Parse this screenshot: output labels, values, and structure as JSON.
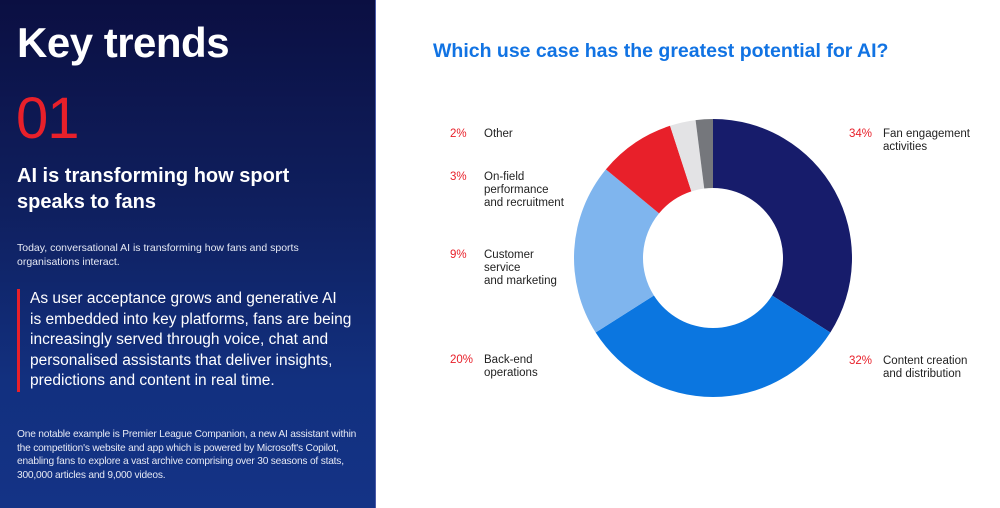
{
  "left_panel": {
    "title": "Key trends",
    "number": "01",
    "subtitle": "AI is transforming how sport speaks to fans",
    "intro": "Today, conversational AI is transforming how fans and sports organisations interact.",
    "quote": "As user acceptance grows and generative AI is embedded into key platforms, fans are being increasingly served through voice, chat and personalised assistants that deliver insights, predictions and content in real time.",
    "footnote": "One notable example is Premier League Companion, a new AI assistant within the competition's website and app which is powered by Microsoft's Copilot, enabling fans to explore a vast archive comprising over 30 seasons of stats, 300,000 articles and 9,000 videos."
  },
  "colors": {
    "accent_red": "#e8202a",
    "title_blue": "#1173e3",
    "panel_navy": "#0f1f5e"
  },
  "legend": {
    "fan_engagement": {
      "pct": "34%",
      "label": "Fan engagement\nactivities"
    },
    "content_creation": {
      "pct": "32%",
      "label": "Content creation\nand distribution"
    },
    "back_end": {
      "pct": "20%",
      "label": "Back-end\noperations"
    },
    "customer_service": {
      "pct": "9%",
      "label": "Customer\nservice\nand marketing"
    },
    "on_field": {
      "pct": "3%",
      "label": "On-field\nperformance\nand recruitment"
    },
    "other": {
      "pct": "2%",
      "label": "Other"
    }
  },
  "chart_data": {
    "type": "pie",
    "subtype": "donut",
    "title": "Which use case has the greatest potential for AI?",
    "categories": [
      "Fan engagement activities",
      "Content creation and distribution",
      "Back-end operations",
      "Customer service and marketing",
      "On-field performance and recruitment",
      "Other"
    ],
    "values": [
      34,
      32,
      20,
      9,
      3,
      2
    ],
    "unit": "%",
    "colors": [
      "#171c6b",
      "#0b76e0",
      "#7fb5ee",
      "#e8202a",
      "#e3e3e5",
      "#75777c"
    ],
    "start_angle": "12 o'clock, clockwise",
    "legend_position": "labels beside slices"
  }
}
